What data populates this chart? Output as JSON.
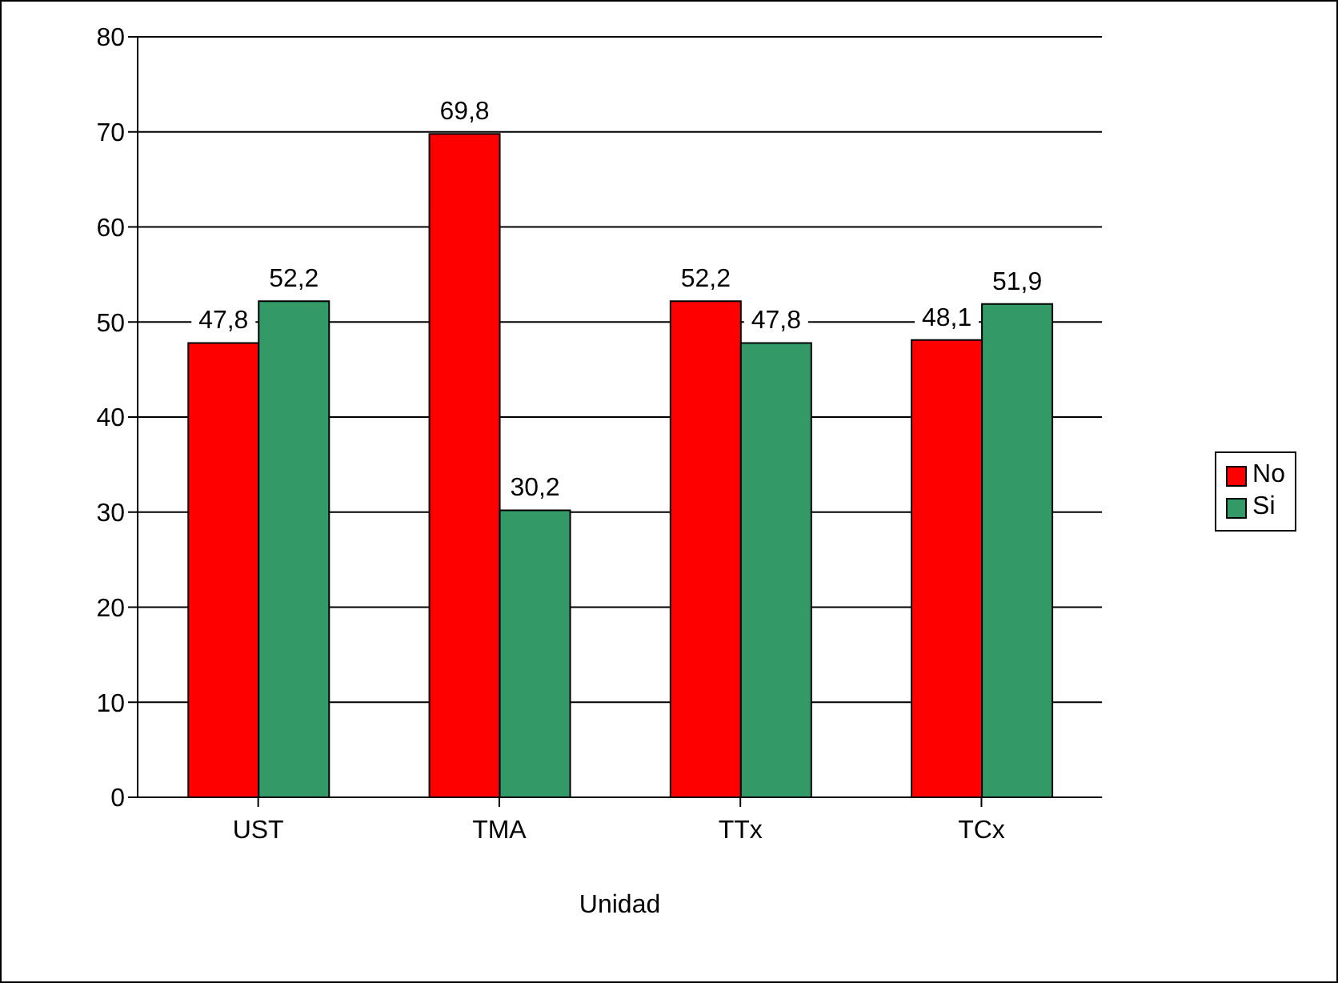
{
  "chart_data": {
    "type": "bar",
    "xlabel": "Unidad",
    "categories": [
      "UST",
      "TMA",
      "TTx",
      "TCx"
    ],
    "series": [
      {
        "name": "No",
        "color": "#ff0000",
        "values": [
          47.8,
          69.8,
          52.2,
          48.1
        ],
        "value_labels": [
          "47,8",
          "69,8",
          "52,2",
          "48,1"
        ]
      },
      {
        "name": "Si",
        "color": "#339966",
        "values": [
          52.2,
          30.2,
          47.8,
          51.9
        ],
        "value_labels": [
          "52,2",
          "30,2",
          "47,8",
          "51,9"
        ]
      }
    ],
    "ylim": [
      0,
      80
    ],
    "yticks": [
      0,
      10,
      20,
      30,
      40,
      50,
      60,
      70,
      80
    ],
    "grid": "y",
    "legend": "right"
  }
}
